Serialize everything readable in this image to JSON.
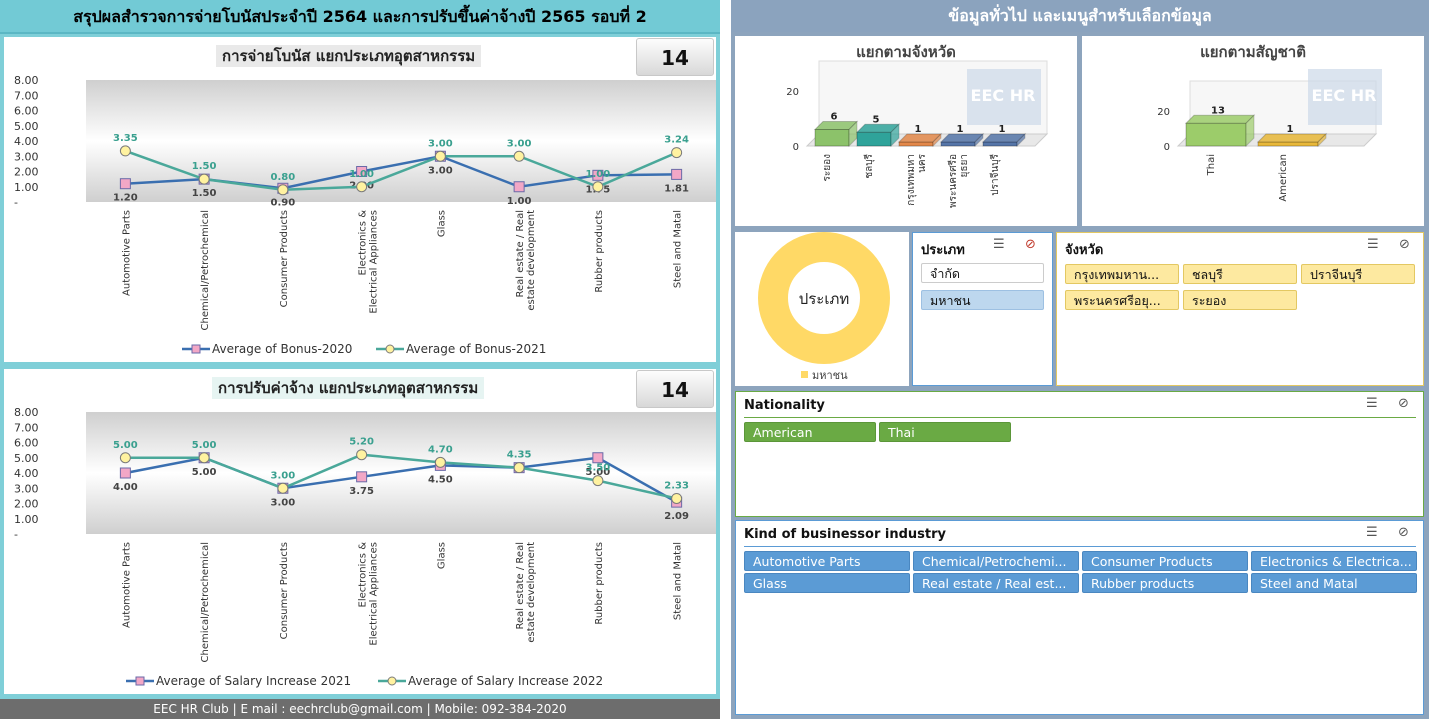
{
  "left_title": "สรุปผลสำรวจการจ่ายโบนัสประจำปี 2564 และการปรับขึ้นค่าจ้างปี 2565 รอบที่ 2",
  "right_title": "ข้อมูลทั่วไป และเมนูสำหรับเลือกข้อมูล",
  "bonus_chart": {
    "title": "การจ่ายโบนัส แยกประเภทอุตสาหกรรม",
    "count": "14",
    "y_ticks": [
      "8.00",
      "7.00",
      "6.00",
      "5.00",
      "4.00",
      "3.00",
      "2.00",
      "1.00",
      "-"
    ],
    "categories": [
      "Automotive Parts",
      "Chemical/Petrochemical",
      "Consumer Products",
      "Electronics & Electrical Appliances",
      "Glass",
      "Real estate / Real estate development",
      "Rubber products",
      "Steel and Matal"
    ],
    "series": [
      {
        "name": "Average of Bonus-2020",
        "values": [
          1.2,
          1.5,
          0.9,
          2.0,
          3.0,
          1.0,
          1.75,
          1.81
        ],
        "labels": [
          "1.20",
          "1.50",
          "0.90",
          "2.00",
          "3.00",
          "1.00",
          "1.75",
          "1.81"
        ],
        "color": "#3a6fb0"
      },
      {
        "name": "Average of Bonus-2021",
        "values": [
          3.35,
          1.5,
          0.8,
          1.0,
          3.0,
          3.0,
          1.0,
          3.24
        ],
        "labels": [
          "3.35",
          "1.50",
          "0.80",
          "1.00",
          "3.00",
          "3.00",
          "1.00",
          "3.24"
        ],
        "color": "#4aa89a"
      }
    ]
  },
  "salary_chart": {
    "title": "การปรับค่าจ้าง แยกประเภทอุตสาหกรรม",
    "count": "14",
    "y_ticks": [
      "8.00",
      "7.00",
      "6.00",
      "5.00",
      "4.00",
      "3.00",
      "2.00",
      "1.00",
      "-"
    ],
    "categories": [
      "Automotive Parts",
      "Chemical/Petrochemical",
      "Consumer Products",
      "Electronics & Electrical Appliances",
      "Glass",
      "Real estate / Real estate development",
      "Rubber products",
      "Steel and Matal"
    ],
    "series": [
      {
        "name": "Average of Salary Increase 2021",
        "values": [
          4.0,
          5.0,
          3.0,
          3.75,
          4.5,
          4.35,
          5.0,
          2.09
        ],
        "labels": [
          "4.00",
          "5.00",
          "3.00",
          "3.75",
          "4.50",
          "",
          "5.00",
          "2.09"
        ],
        "color": "#3a6fb0"
      },
      {
        "name": "Average of Salary Increase 2022",
        "values": [
          5.0,
          5.0,
          3.0,
          5.2,
          4.7,
          4.35,
          3.5,
          2.33
        ],
        "labels": [
          "5.00",
          "5.00",
          "3.00",
          "5.20",
          "4.70",
          "4.35",
          "3.50",
          "2.33"
        ],
        "color": "#4aa89a"
      }
    ]
  },
  "footer": "EEC HR Club | E mail : eechrclub@gmail.com  | Mobile: 092-384-2020",
  "province_chart": {
    "title": "แยกตามจังหวัด",
    "y_ticks": [
      "20",
      "0"
    ],
    "categories": [
      "ระยอง",
      "ชลบุรี",
      "กรุงเทพมหานคร",
      "พระนครศรีอยุธยา",
      "ปราจีนบุรี"
    ],
    "tick_labels": [
      [
        "ระยอง"
      ],
      [
        "ชลบุรี"
      ],
      [
        "กรุงเทพมหา",
        "นคร"
      ],
      [
        "พระนครศรีอ",
        "ยุธยา"
      ],
      [
        "ปราจีนบุรี"
      ]
    ],
    "values": [
      6,
      5,
      1,
      1,
      1
    ],
    "colors": [
      "#8cc26a",
      "#2fa39a",
      "#e3884a",
      "#5575a8",
      "#5575a8"
    ]
  },
  "nationality_chart": {
    "title": "แยกตามสัญชาติ",
    "y_ticks": [
      "20",
      "0"
    ],
    "categories": [
      "Thai",
      "American"
    ],
    "values": [
      13,
      1
    ],
    "colors": [
      "#9ccc6a",
      "#e8b83a"
    ]
  },
  "logo_text": "EEC HR",
  "donut": {
    "center_label": "ประเภท",
    "legend": "มหาชน",
    "color": "#ffd966"
  },
  "slicer_type": {
    "title": "ประเภท",
    "items": [
      "จำกัด",
      "มหาชน"
    ]
  },
  "slicer_province": {
    "title": "จังหวัด",
    "items": [
      "กรุงเทพมหาน...",
      "ชลบุรี",
      "ปราจีนบุรี",
      "พระนครศรีอยุ...",
      "ระยอง"
    ]
  },
  "slicer_nationality": {
    "title": "Nationality",
    "items": [
      "American",
      "Thai"
    ]
  },
  "slicer_industry": {
    "title": "Kind of businessor industry",
    "items": [
      "Automotive Parts",
      "Chemical/Petrochemi...",
      "Consumer Products",
      "Electronics & Electrica...",
      "Glass",
      "Real estate / Real est...",
      "Rubber products",
      "Steel and Matal"
    ]
  },
  "icons": {
    "multiselect": "multiselect-icon",
    "clear_filter": "clear-filter-icon"
  }
}
